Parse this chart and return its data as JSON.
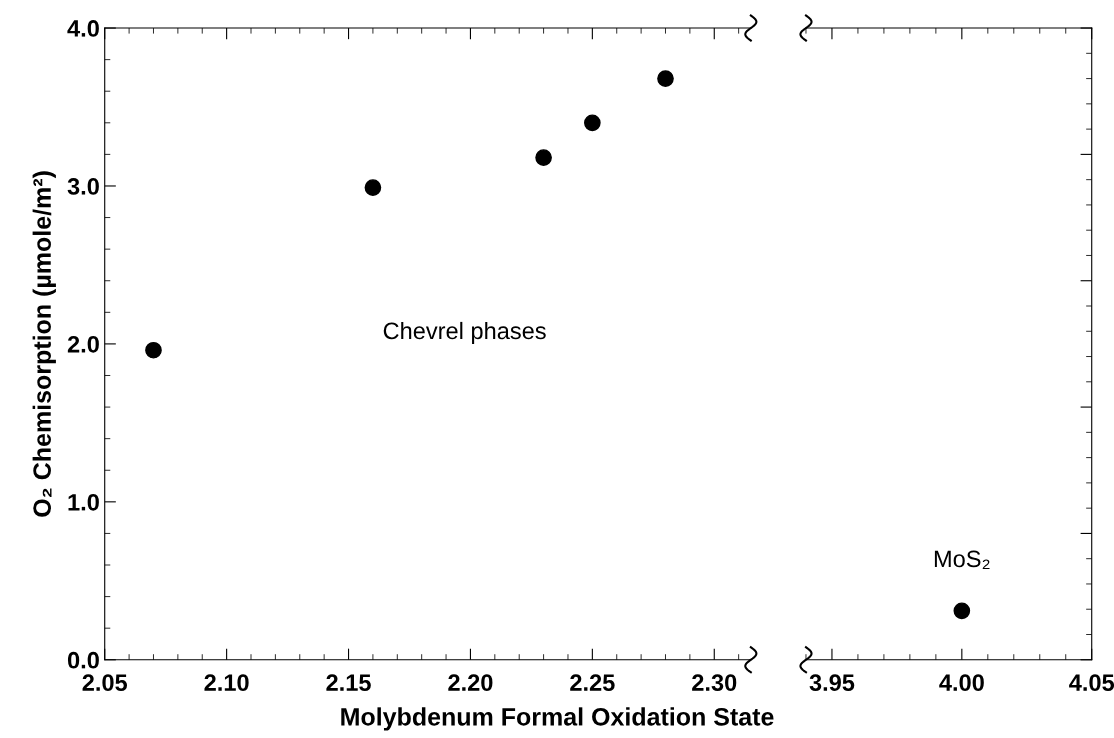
{
  "chart_data": [
    {
      "type": "scatter",
      "ylabel": "O₂ Chemisorption (µmole/m²)",
      "xlabel": "Molybdenum Formal Oxidation State",
      "x": [
        2.07,
        2.16,
        2.23,
        2.25,
        2.28
      ],
      "values": [
        1.96,
        2.99,
        3.18,
        3.4,
        3.68
      ],
      "color": "#000000",
      "marker": "circle",
      "xlim": [
        2.05,
        2.315
      ],
      "xticks": [
        {
          "value": 2.05,
          "label": "2.05"
        },
        {
          "value": 2.1,
          "label": "2.10"
        },
        {
          "value": 2.15,
          "label": "2.15"
        },
        {
          "value": 2.2,
          "label": "2.20"
        },
        {
          "value": 2.25,
          "label": "2.25"
        },
        {
          "value": 2.3,
          "label": "2.30"
        }
      ],
      "ylim": [
        0,
        4
      ],
      "yticks": [
        {
          "value": 0,
          "label": "0.0"
        },
        {
          "value": 1,
          "label": "1.0"
        },
        {
          "value": 2,
          "label": "2.0"
        },
        {
          "value": 3,
          "label": "3.0"
        },
        {
          "value": 4,
          "label": "4.0"
        }
      ],
      "annotations": [
        "Chevrel phases"
      ]
    },
    {
      "type": "scatter",
      "x": [
        4.0
      ],
      "values": [
        0.31
      ],
      "color": "#000000",
      "marker": "circle",
      "xlim": [
        3.94,
        4.05
      ],
      "xticks": [
        {
          "value": 3.95,
          "label": "3.95"
        },
        {
          "value": 4.0,
          "label": "4.00"
        },
        {
          "value": 4.05,
          "label": "4.05"
        }
      ],
      "ylim": [
        0,
        4
      ],
      "tick_labels": "x",
      "annotations": [
        {
          "text": "MoS₂",
          "x": 4.0,
          "y": 0.31
        }
      ]
    }
  ]
}
